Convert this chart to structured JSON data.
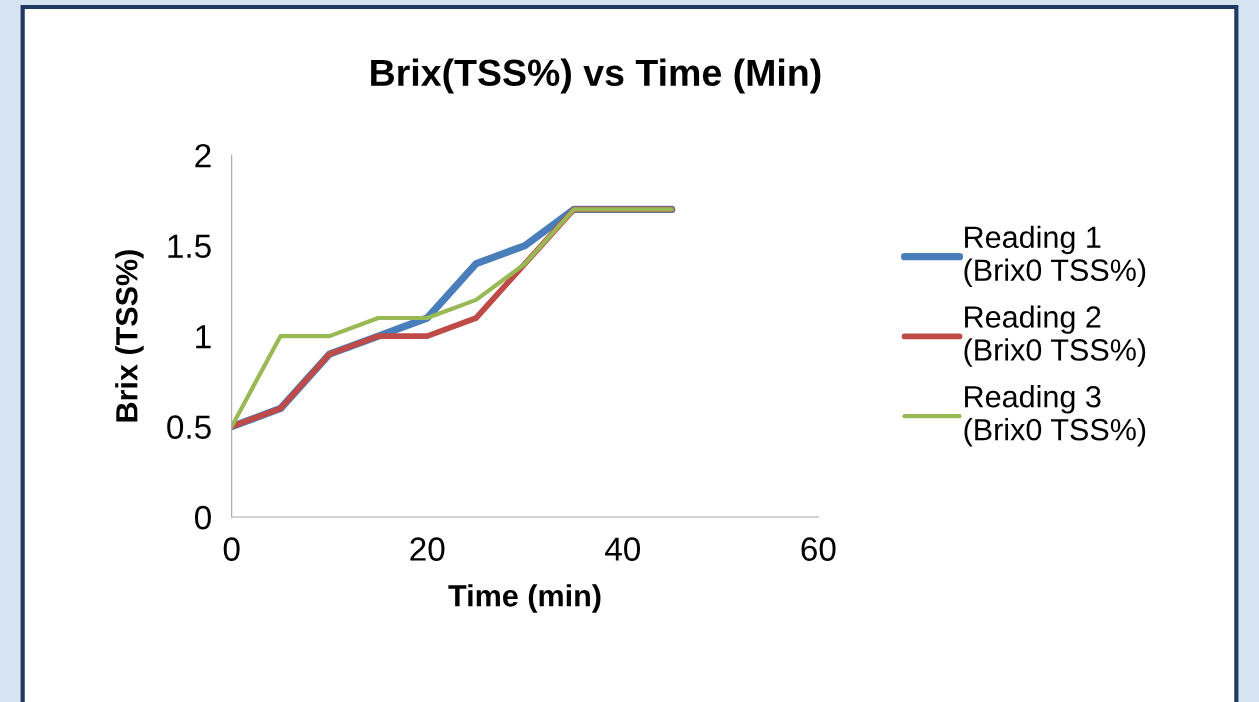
{
  "chart_data": {
    "type": "line",
    "title": "Brix(TSS%) vs Time (Min)",
    "xlabel": "Time (min)",
    "ylabel": "Brix (TSS%)",
    "x": [
      0,
      5,
      10,
      15,
      20,
      25,
      30,
      35,
      40,
      45
    ],
    "series": [
      {
        "name": "Reading 1 (Brix0 TSS%)",
        "color": "#4a7ebb",
        "values": [
          0.5,
          0.6,
          0.9,
          1.0,
          1.1,
          1.4,
          1.5,
          1.7,
          1.7,
          1.7
        ]
      },
      {
        "name": "Reading 2 (Brix0 TSS%)",
        "color": "#be4b48",
        "values": [
          0.5,
          0.6,
          0.9,
          1.0,
          1.0,
          1.1,
          1.4,
          1.7,
          1.7,
          1.7
        ]
      },
      {
        "name": "Reading 3 (Brix0 TSS%)",
        "color": "#98b954",
        "values": [
          0.5,
          1.0,
          1.0,
          1.1,
          1.1,
          1.2,
          1.4,
          1.7,
          1.7,
          1.7
        ]
      }
    ],
    "xlim": [
      0,
      60
    ],
    "xticks": [
      0,
      20,
      40,
      60
    ],
    "ylim": [
      0,
      2
    ],
    "yticks": [
      0,
      0.5,
      1,
      1.5,
      2
    ],
    "grid": false,
    "legend": "right",
    "marker": "none",
    "line_style": "solid"
  }
}
